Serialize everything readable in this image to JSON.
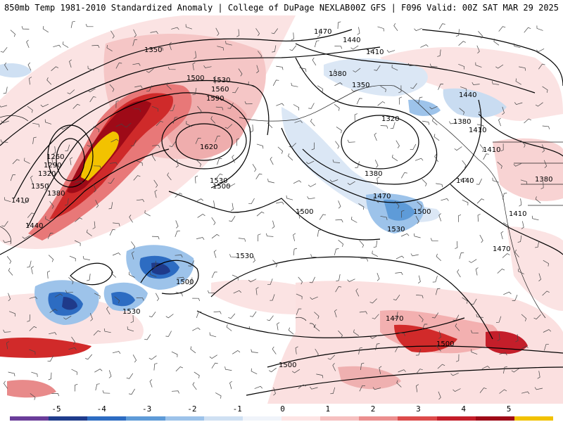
{
  "title": {
    "left": "850mb Temp 1981-2010 Standardized Anomaly | College of DuPage NEXLAB",
    "right": "00Z GFS | F096 Valid: 00Z SAT MAR 29 2025"
  },
  "contour_labels": [
    "1470",
    "1440",
    "1410",
    "1350",
    "1500",
    "1530",
    "1560",
    "1590",
    "1620",
    "1380",
    "1320",
    "1260",
    "1290",
    "1320",
    "1350",
    "1380",
    "1410",
    "1440",
    "1500",
    "1530",
    "1500",
    "1530",
    "1500",
    "1470",
    "1500",
    "1530",
    "1350",
    "1320",
    "1380",
    "1440",
    "1410",
    "1380",
    "1410",
    "1410",
    "1440",
    "1470",
    "1380",
    "1530",
    "1500",
    "1500",
    "1470"
  ],
  "colorbar": {
    "ticks": [
      "-5",
      "-4",
      "-3",
      "-2",
      "-1",
      "0",
      "1",
      "2",
      "3",
      "4",
      "5"
    ],
    "colors": [
      "#6a3d9a",
      "#1f3c8c",
      "#2d6cc2",
      "#5e9bd8",
      "#9dc3ea",
      "#cfe0f3",
      "#f0f4fa",
      "#fde4e4",
      "#f6c0c0",
      "#ec8f8f",
      "#dd4b4b",
      "#c41e2a",
      "#9e0a17",
      "#f2c200"
    ]
  },
  "colors": {
    "warm_weak": "#f6d3d3",
    "warm_mid": "#ec9a9a",
    "warm_strong": "#d12a2a",
    "warm_extreme": "#9e0a17",
    "warm_peak": "#f2c200",
    "cool_weak": "#cfe0f3",
    "cool_mid": "#7fb0e0",
    "cool_strong": "#2d6cc2",
    "cool_extreme": "#1f3a8a"
  }
}
